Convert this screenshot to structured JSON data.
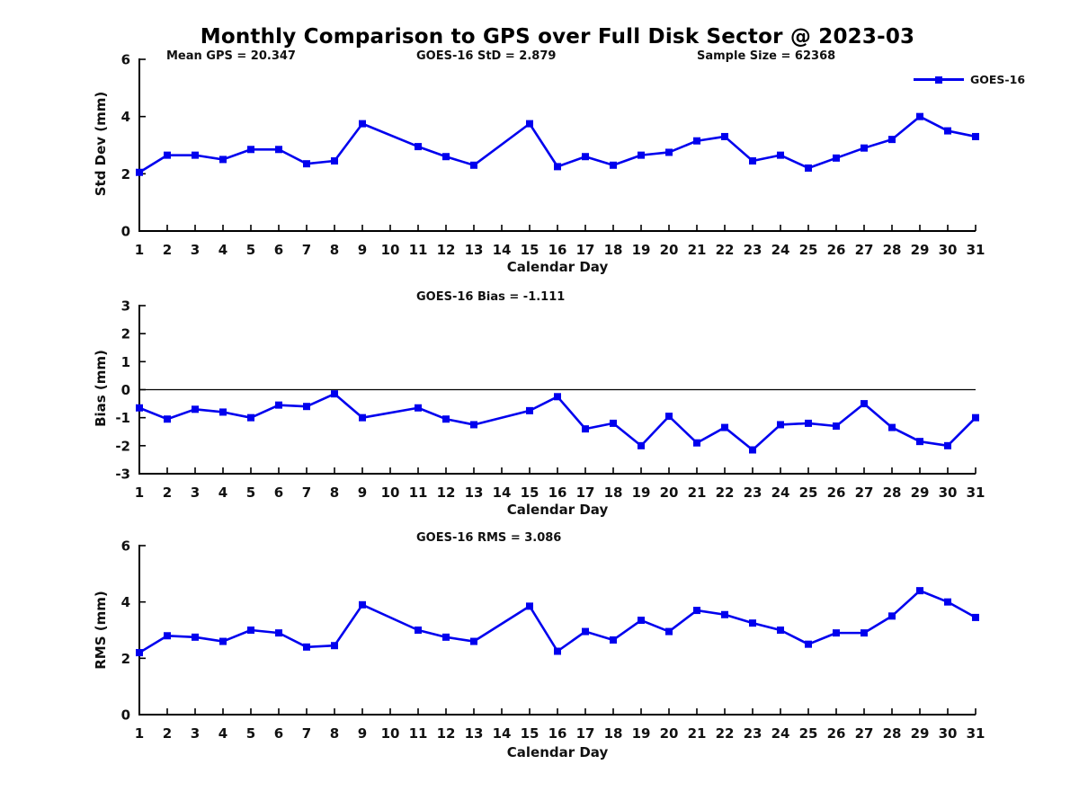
{
  "chart_data": {
    "type": "line",
    "title": "Monthly Comparison to GPS over Full Disk Sector @ 2023-03",
    "legend": [
      "GOES-16"
    ],
    "line_color": "#0000EE",
    "axis_color": "#000000",
    "text_color": "#111111",
    "xlabel": "Calendar Day",
    "xticks": [
      1,
      2,
      3,
      4,
      5,
      6,
      7,
      8,
      9,
      10,
      11,
      12,
      13,
      14,
      15,
      16,
      17,
      18,
      19,
      20,
      21,
      22,
      23,
      24,
      25,
      26,
      27,
      28,
      29,
      30,
      31
    ],
    "subplots": [
      {
        "name": "std-dev",
        "ylabel": "Std Dev (mm)",
        "ylim": [
          0,
          6
        ],
        "yticks": [
          0,
          2,
          4,
          6
        ],
        "annotations": [
          "Mean GPS = 20.347",
          "GOES-16 StD = 2.879",
          "Sample Size = 62368"
        ],
        "zero_line": false,
        "x": [
          1,
          2,
          3,
          4,
          5,
          6,
          7,
          8,
          9,
          11,
          12,
          13,
          15,
          16,
          17,
          18,
          19,
          20,
          21,
          22,
          23,
          24,
          25,
          26,
          27,
          28,
          29,
          30,
          31
        ],
        "y": [
          2.05,
          2.65,
          2.65,
          2.5,
          2.85,
          2.85,
          2.35,
          2.45,
          3.75,
          2.95,
          2.6,
          2.3,
          3.75,
          2.25,
          2.6,
          2.3,
          2.65,
          2.75,
          3.15,
          3.3,
          2.45,
          2.65,
          2.2,
          2.55,
          2.9,
          3.2,
          4.0,
          3.5,
          3.3
        ]
      },
      {
        "name": "bias",
        "ylabel": "Bias (mm)",
        "ylim": [
          -3,
          3
        ],
        "yticks": [
          -3,
          -2,
          -1,
          0,
          1,
          2,
          3
        ],
        "annotations": [
          "GOES-16 Bias = -1.111"
        ],
        "zero_line": true,
        "x": [
          1,
          2,
          3,
          4,
          5,
          6,
          7,
          8,
          9,
          11,
          12,
          13,
          15,
          16,
          17,
          18,
          19,
          20,
          21,
          22,
          23,
          24,
          25,
          26,
          27,
          28,
          29,
          30,
          31
        ],
        "y": [
          -0.65,
          -1.05,
          -0.7,
          -0.8,
          -1.0,
          -0.55,
          -0.6,
          -0.15,
          -1.0,
          -0.65,
          -1.05,
          -1.25,
          -0.75,
          -0.25,
          -1.4,
          -1.2,
          -2.0,
          -0.95,
          -1.9,
          -1.35,
          -2.15,
          -1.25,
          -1.2,
          -1.3,
          -0.5,
          -1.35,
          -1.85,
          -2.0,
          -1.0
        ]
      },
      {
        "name": "rms",
        "ylabel": "RMS (mm)",
        "ylim": [
          0,
          6
        ],
        "yticks": [
          0,
          2,
          4,
          6
        ],
        "annotations": [
          "GOES-16 RMS = 3.086"
        ],
        "zero_line": false,
        "x": [
          1,
          2,
          3,
          4,
          5,
          6,
          7,
          8,
          9,
          11,
          12,
          13,
          15,
          16,
          17,
          18,
          19,
          20,
          21,
          22,
          23,
          24,
          25,
          26,
          27,
          28,
          29,
          30,
          31
        ],
        "y": [
          2.2,
          2.8,
          2.75,
          2.6,
          3.0,
          2.9,
          2.4,
          2.45,
          3.9,
          3.0,
          2.75,
          2.6,
          3.85,
          2.25,
          2.95,
          2.65,
          3.35,
          2.95,
          3.7,
          3.55,
          3.25,
          3.0,
          2.5,
          2.9,
          2.9,
          3.5,
          4.4,
          4.0,
          3.45
        ]
      }
    ]
  }
}
